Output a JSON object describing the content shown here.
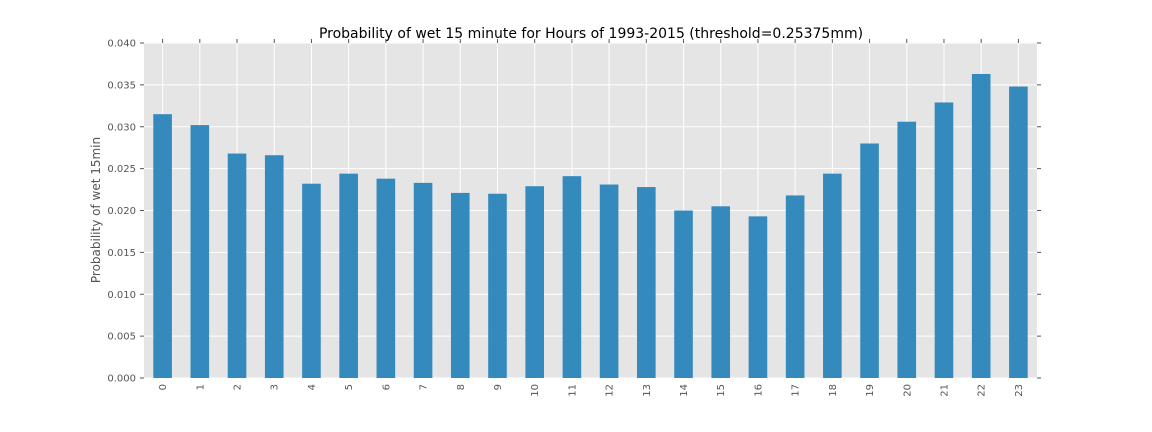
{
  "chart_data": {
    "type": "bar",
    "title": "Probability of wet 15 minute for Hours of 1993-2015 (threshold=0.25375mm)",
    "xlabel": "",
    "ylabel": "Probability of wet 15min",
    "ylim": [
      0,
      0.04
    ],
    "yticks": [
      "0.000",
      "0.005",
      "0.010",
      "0.015",
      "0.020",
      "0.025",
      "0.030",
      "0.035",
      "0.040"
    ],
    "categories": [
      "0",
      "1",
      "2",
      "3",
      "4",
      "5",
      "6",
      "7",
      "8",
      "9",
      "10",
      "11",
      "12",
      "13",
      "14",
      "15",
      "16",
      "17",
      "18",
      "19",
      "20",
      "21",
      "22",
      "23"
    ],
    "values": [
      0.0315,
      0.0302,
      0.0268,
      0.0266,
      0.0232,
      0.0244,
      0.0238,
      0.0233,
      0.0221,
      0.022,
      0.0229,
      0.0241,
      0.0231,
      0.0228,
      0.02,
      0.0205,
      0.0193,
      0.0218,
      0.0244,
      0.028,
      0.0306,
      0.0329,
      0.0363,
      0.0348
    ],
    "grid": true,
    "bar_color": "#348abd",
    "plot_background": "#e5e5e5"
  }
}
